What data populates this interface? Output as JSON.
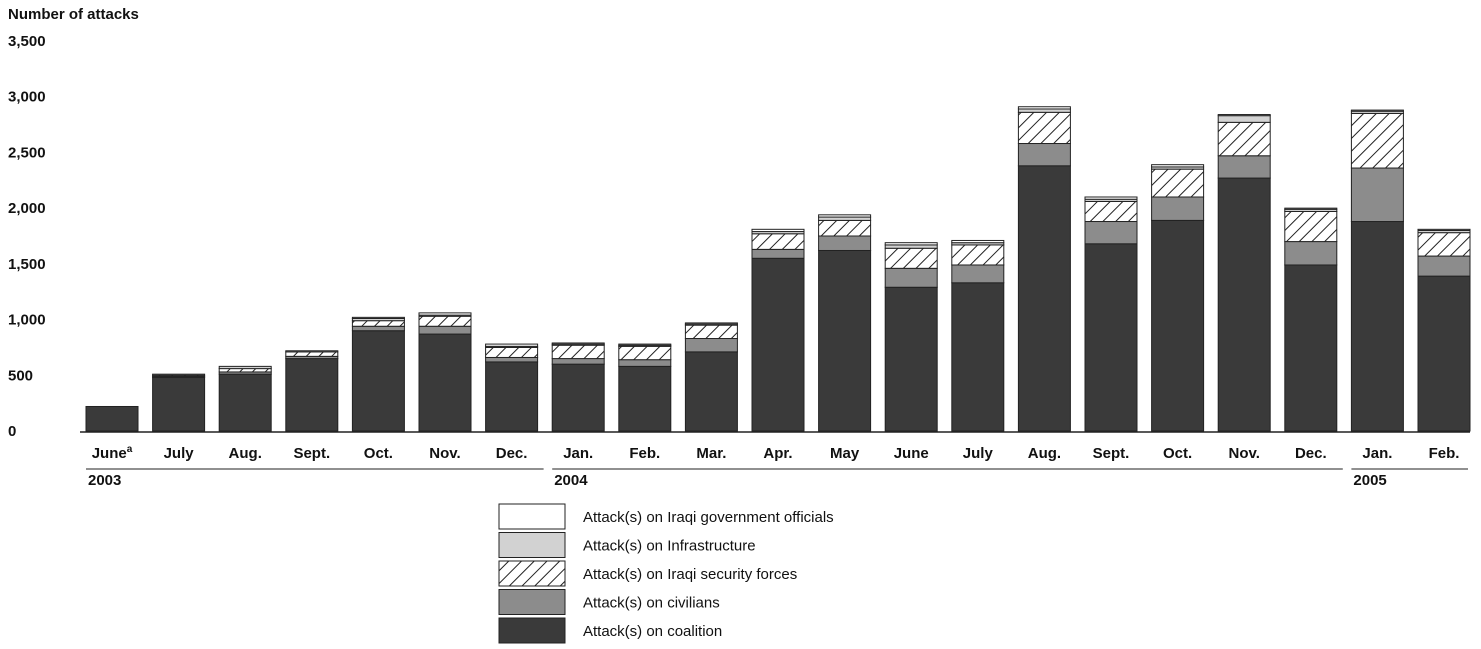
{
  "chart_data": {
    "type": "bar",
    "stacked": true,
    "ylabel": "Number of attacks",
    "ylim": [
      0,
      3500
    ],
    "yticks": [
      "0",
      "500",
      "1,000",
      "1,500",
      "2,000",
      "2,500",
      "3,000",
      "3,500"
    ],
    "ytick_values": [
      0,
      500,
      1000,
      1500,
      2000,
      2500,
      3000,
      3500
    ],
    "categories": [
      "June",
      "July",
      "Aug.",
      "Sept.",
      "Oct.",
      "Nov.",
      "Dec.",
      "Jan.",
      "Feb.",
      "Mar.",
      "Apr.",
      "May",
      "June",
      "July",
      "Aug.",
      "Sept.",
      "Oct.",
      "Nov.",
      "Dec.",
      "Jan.",
      "Feb."
    ],
    "first_category_superscript": "a",
    "year_groups": [
      {
        "label": "2003",
        "start": 0,
        "end": 6
      },
      {
        "label": "2004",
        "start": 7,
        "end": 18
      },
      {
        "label": "2005",
        "start": 19,
        "end": 20
      }
    ],
    "series": [
      {
        "name": "Attack(s) on coalition",
        "fill": "#3a3a3a",
        "values": [
          220,
          480,
          510,
          650,
          900,
          870,
          620,
          600,
          580,
          710,
          1550,
          1620,
          1290,
          1330,
          2380,
          1680,
          1890,
          2270,
          1490,
          1880,
          1390
        ]
      },
      {
        "name": "Attack(s) on civilians",
        "fill": "#8c8c8c",
        "values": [
          0,
          10,
          20,
          20,
          40,
          70,
          40,
          50,
          60,
          120,
          80,
          130,
          170,
          160,
          200,
          200,
          210,
          200,
          210,
          480,
          180
        ]
      },
      {
        "name": "Attack(s) on Iraqi security forces",
        "fill": "hatch",
        "values": [
          0,
          10,
          30,
          40,
          50,
          90,
          90,
          120,
          120,
          120,
          140,
          140,
          180,
          180,
          280,
          180,
          250,
          300,
          270,
          490,
          210
        ]
      },
      {
        "name": "Attack(s) on Infrastructure",
        "fill": "#d2d2d2",
        "values": [
          0,
          10,
          20,
          10,
          20,
          10,
          10,
          10,
          10,
          10,
          20,
          30,
          30,
          20,
          30,
          20,
          20,
          60,
          20,
          20,
          20
        ]
      },
      {
        "name": "Attack(s) on Iraqi government officials",
        "fill": "#ffffff",
        "values": [
          0,
          0,
          0,
          0,
          10,
          20,
          20,
          10,
          10,
          10,
          20,
          20,
          20,
          20,
          20,
          20,
          20,
          10,
          10,
          10,
          10
        ]
      }
    ],
    "legend_order": [
      4,
      3,
      2,
      1,
      0
    ],
    "grid": false,
    "legend_position": "bottom-center"
  }
}
